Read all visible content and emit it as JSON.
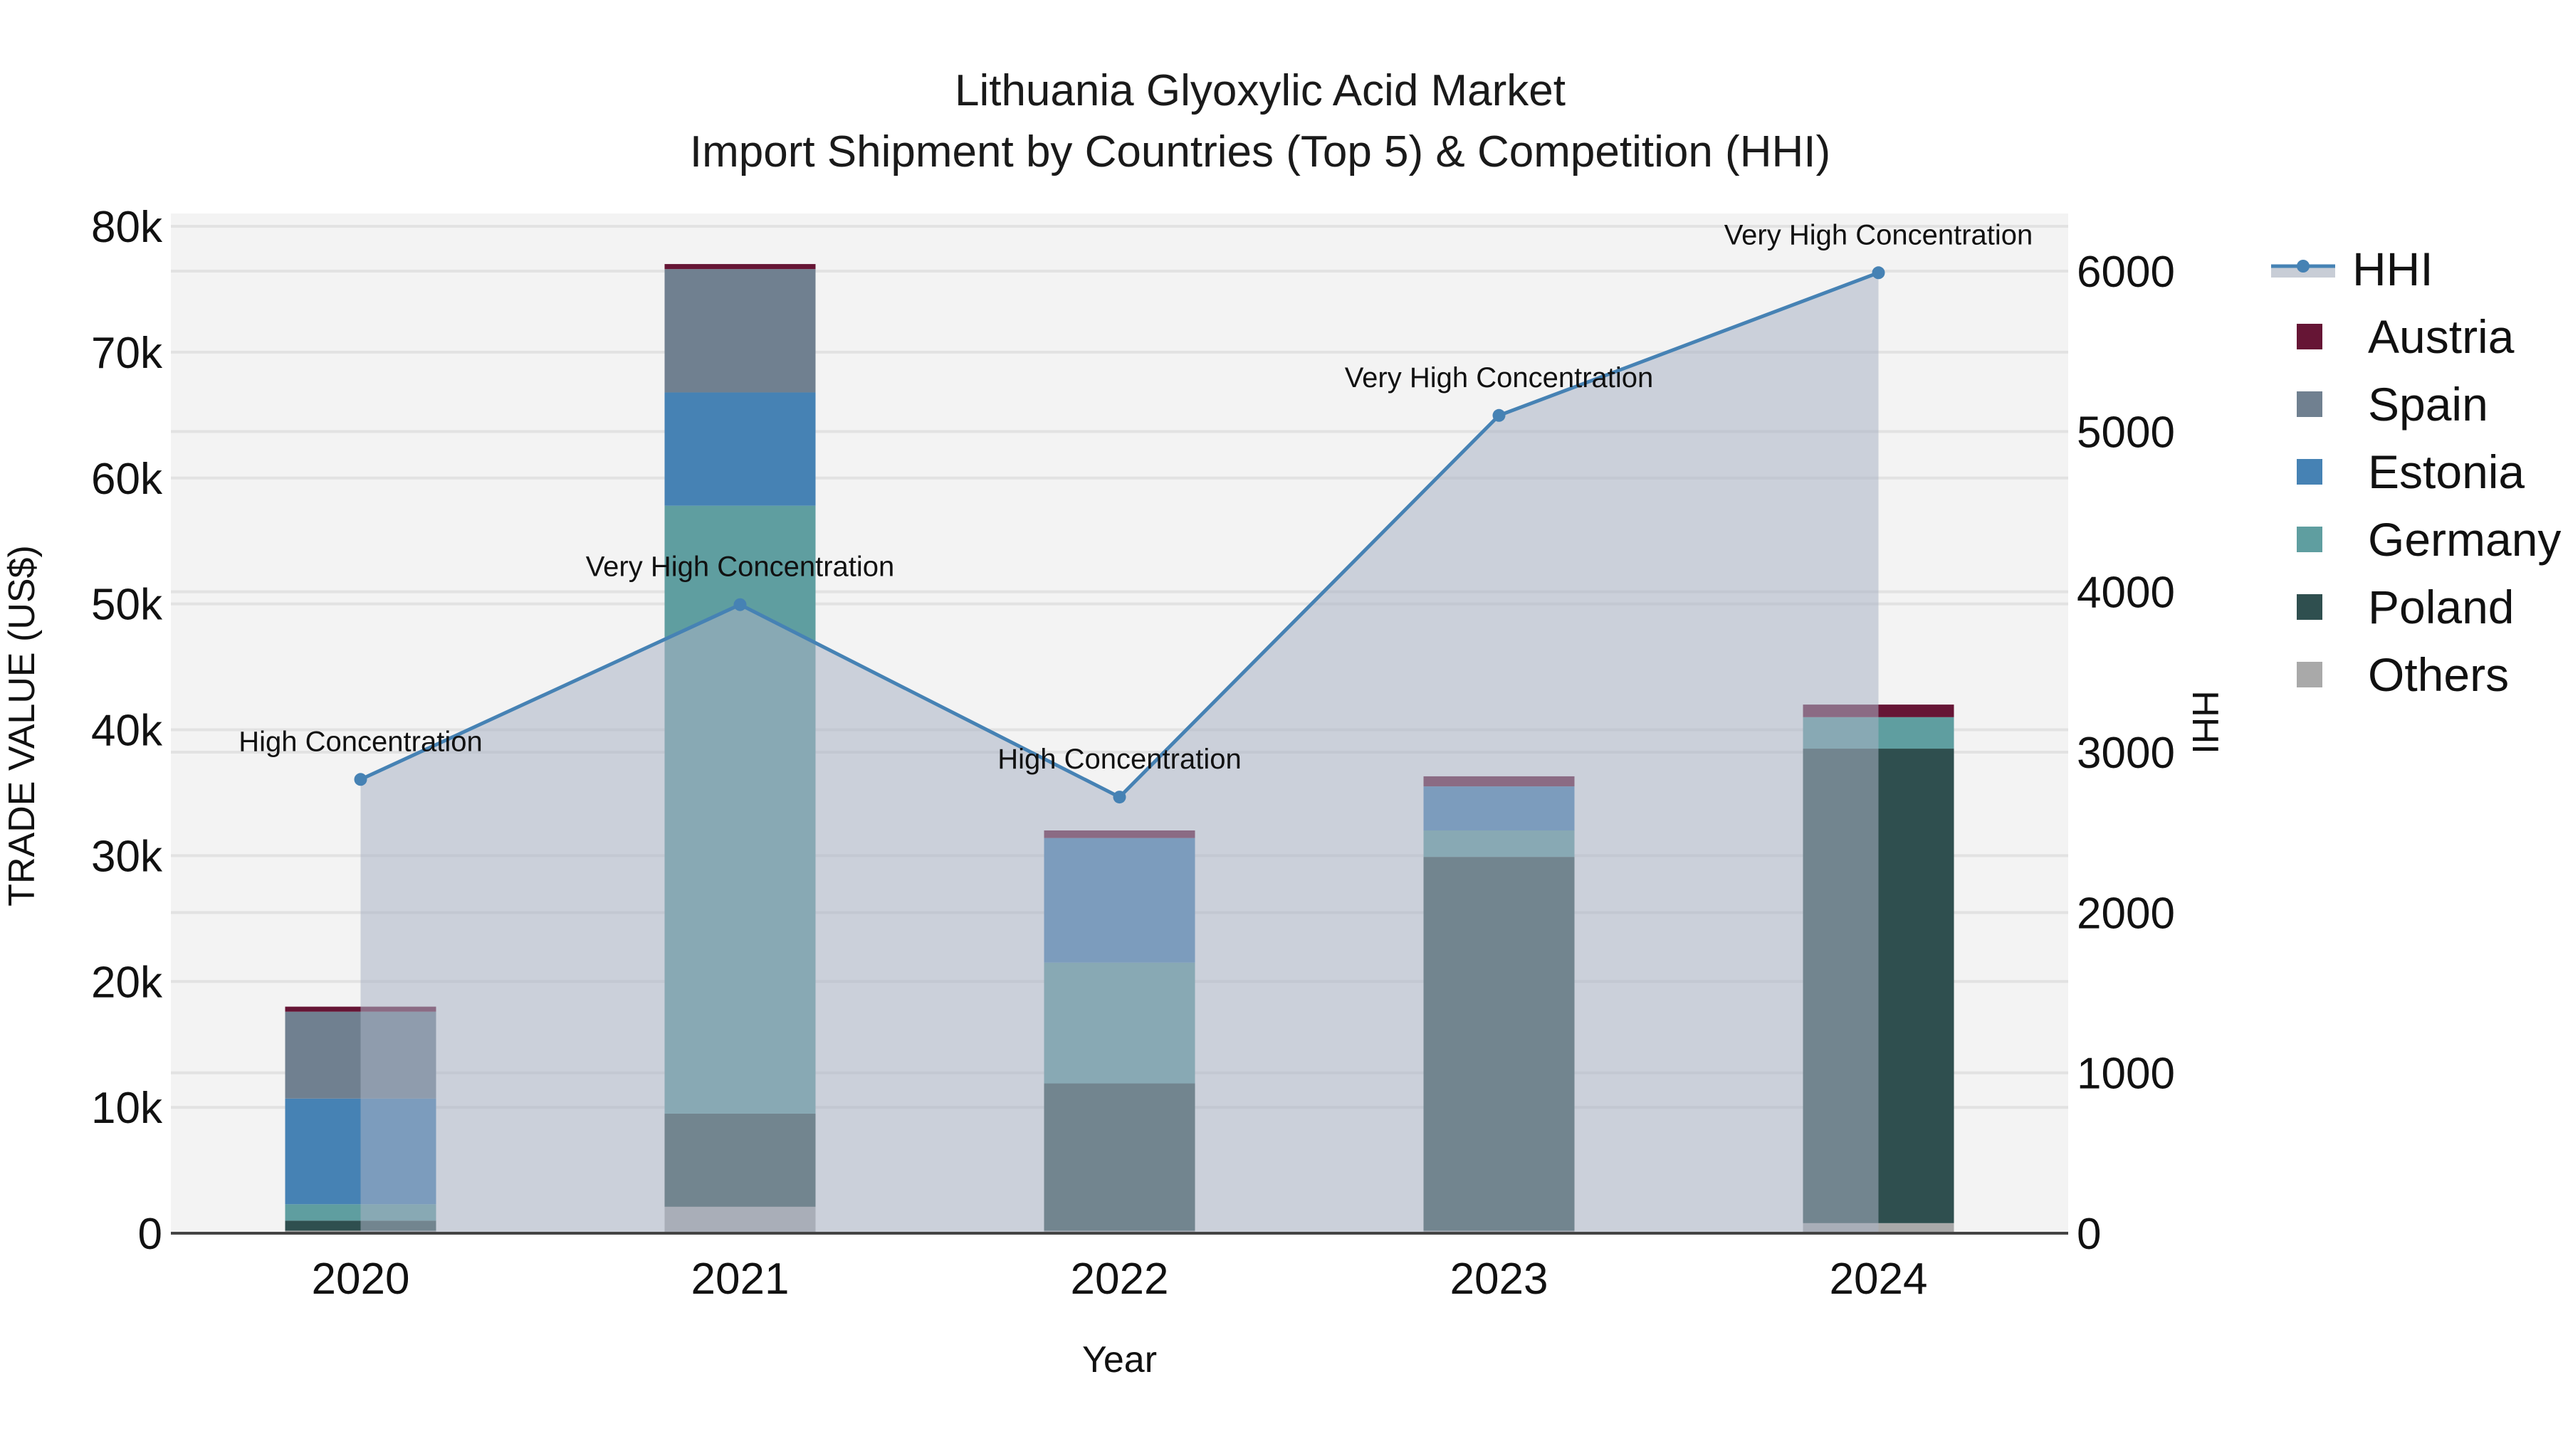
{
  "title": {
    "line1": "Lithuania Glyoxylic Acid Market",
    "line2": "Import Shipment by Countries (Top 5) & Competition (HHI)"
  },
  "axes": {
    "x_label": "Year",
    "y_left_label": "TRADE VALUE (US$)",
    "y_right_label": "HHI",
    "y_left_ticks": [
      "0",
      "10k",
      "20k",
      "30k",
      "40k",
      "50k",
      "60k",
      "70k",
      "80k"
    ],
    "y_right_ticks": [
      "0",
      "1000",
      "2000",
      "3000",
      "4000",
      "5000",
      "6000"
    ]
  },
  "legend": [
    {
      "name": "HHI",
      "color": "#4682b4",
      "type": "line"
    },
    {
      "name": "Austria",
      "color": "#661535",
      "type": "bar"
    },
    {
      "name": "Spain",
      "color": "#708090",
      "type": "bar"
    },
    {
      "name": "Estonia",
      "color": "#4682b4",
      "type": "bar"
    },
    {
      "name": "Germany",
      "color": "#5f9ea0",
      "type": "bar"
    },
    {
      "name": "Poland",
      "color": "#2f4f4f",
      "type": "bar"
    },
    {
      "name": "Others",
      "color": "#a9a9a9",
      "type": "bar"
    }
  ],
  "chart_data": {
    "type": "bar",
    "stacked": true,
    "title": "Lithuania Glyoxylic Acid Market — Import Shipment by Countries (Top 5) & Competition (HHI)",
    "xlabel": "Year",
    "ylabel": "TRADE VALUE (US$)",
    "ylabel_right": "HHI",
    "ylim": [
      0,
      80000
    ],
    "ylim_right": [
      0,
      6000
    ],
    "categories": [
      "2020",
      "2021",
      "2022",
      "2023",
      "2024"
    ],
    "series": [
      {
        "name": "Others",
        "color": "#a9a9a9",
        "values": [
          200,
          2100,
          200,
          200,
          800
        ]
      },
      {
        "name": "Poland",
        "color": "#2f4f4f",
        "values": [
          800,
          7400,
          11700,
          29700,
          37700
        ]
      },
      {
        "name": "Germany",
        "color": "#5f9ea0",
        "values": [
          1300,
          48300,
          9600,
          2100,
          2500
        ]
      },
      {
        "name": "Estonia",
        "color": "#4682b4",
        "values": [
          8400,
          9000,
          9900,
          3500,
          0
        ]
      },
      {
        "name": "Spain",
        "color": "#708090",
        "values": [
          6900,
          9800,
          0,
          0,
          0
        ]
      },
      {
        "name": "Austria",
        "color": "#661535",
        "values": [
          400,
          400,
          600,
          800,
          1000
        ]
      }
    ],
    "line_series": {
      "name": "HHI",
      "axis": "right",
      "color": "#4682b4",
      "fill": "#c8cdd6",
      "values": [
        2830,
        3920,
        2720,
        5100,
        5990
      ],
      "annotations": [
        "High Concentration",
        "Very High Concentration",
        "High Concentration",
        "Very High Concentration",
        "Very High Concentration"
      ]
    },
    "grid": true,
    "legend_position": "right"
  }
}
